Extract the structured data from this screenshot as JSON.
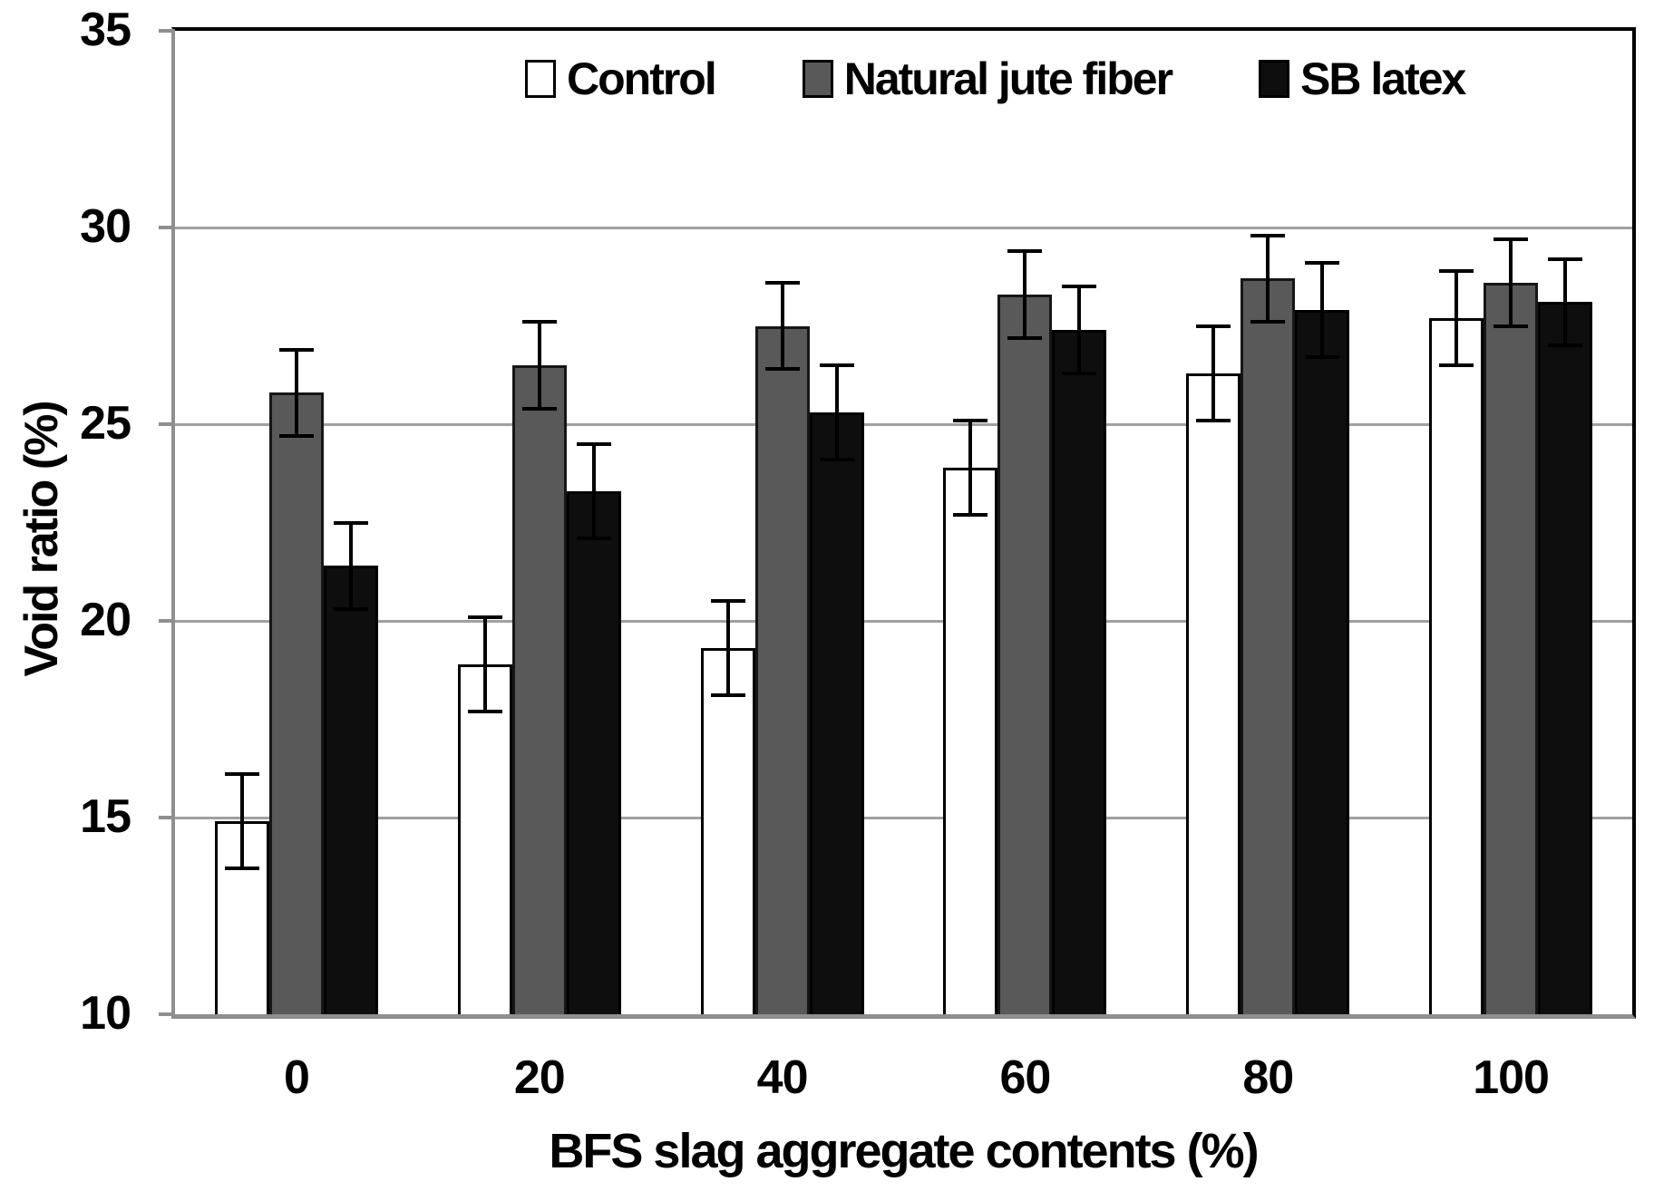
{
  "chart_data": {
    "type": "bar",
    "title": "",
    "xlabel": "BFS slag aggregate contents (%)",
    "ylabel": "Void ratio (%)",
    "categories": [
      "0",
      "20",
      "40",
      "60",
      "80",
      "100"
    ],
    "y_ticks": [
      10,
      15,
      20,
      25,
      30,
      35
    ],
    "ylim": [
      10,
      35
    ],
    "grid": "horizontal gridlines every 5 units, gray",
    "legend_position": "top center, inside plot, horizontal",
    "error_bars": true,
    "series": [
      {
        "name": "Control",
        "fill": "#ffffff",
        "border": "#000000",
        "values": [
          14.9,
          18.9,
          19.3,
          23.9,
          26.3,
          27.7
        ],
        "errors": [
          1.2,
          1.2,
          1.2,
          1.2,
          1.2,
          1.2
        ]
      },
      {
        "name": "Natural jute fiber",
        "fill": "#595959",
        "border": "#161616",
        "values": [
          25.8,
          26.5,
          27.5,
          28.3,
          28.7,
          28.6
        ],
        "errors": [
          1.1,
          1.1,
          1.1,
          1.1,
          1.1,
          1.1
        ]
      },
      {
        "name": "SB latex",
        "fill": "#0e0e0e",
        "border": "#000000",
        "values": [
          21.4,
          23.3,
          25.3,
          27.4,
          27.9,
          28.1
        ],
        "errors": [
          1.1,
          1.2,
          1.2,
          1.1,
          1.2,
          1.1
        ]
      }
    ]
  },
  "colors": {
    "background": "#ffffff",
    "gridline": "#a0a0a0",
    "axis_gray": "#8f8f8f",
    "frame_black": "#000000",
    "error_bar": "#000000",
    "text": "#000000"
  }
}
